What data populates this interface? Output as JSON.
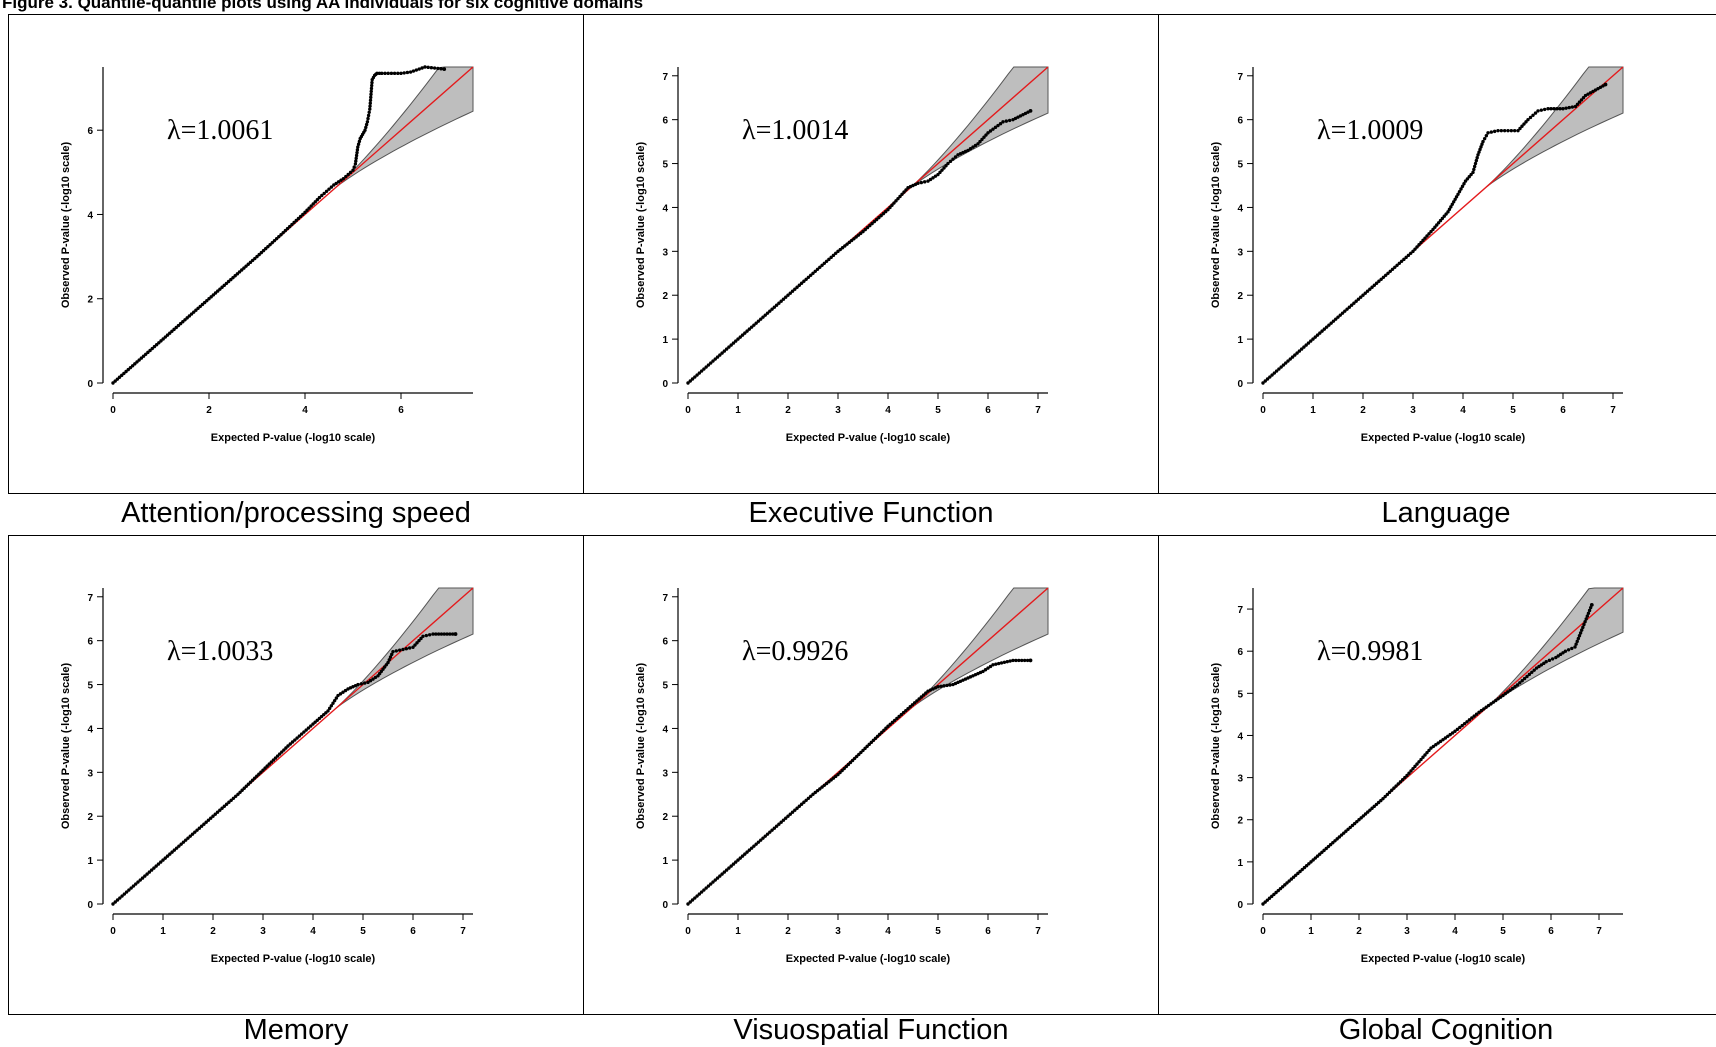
{
  "figure": {
    "caption": "Figure 3. Quantile-quantile plots using AA individuals for six cognitive domains"
  },
  "colors": {
    "expected_line": "#e41a1c",
    "confidence_band": "#bebebe",
    "points": "#000000",
    "frame": "#000000"
  },
  "chart_data": [
    {
      "type": "scatter",
      "title": "Attention/processing speed",
      "annotation": "λ=1.0061",
      "xlabel": "Expected P-value (-log10 scale)",
      "ylabel": "Observed P-value (-log10 scale)",
      "xlim": [
        0,
        7.5
      ],
      "ylim": [
        0,
        7.5
      ],
      "xticks": [
        0,
        2,
        4,
        6
      ],
      "yticks": [
        0,
        2,
        4,
        6
      ],
      "reference_line": "y=x",
      "confidence_band": true,
      "grid": false,
      "points": [
        [
          0.5,
          0.5
        ],
        [
          1,
          1
        ],
        [
          1.5,
          1.5
        ],
        [
          2,
          2
        ],
        [
          2.5,
          2.5
        ],
        [
          3,
          3
        ],
        [
          3.5,
          3.52
        ],
        [
          4,
          4.05
        ],
        [
          4.3,
          4.4
        ],
        [
          4.6,
          4.7
        ],
        [
          4.8,
          4.85
        ],
        [
          4.9,
          4.95
        ],
        [
          5,
          5.05
        ],
        [
          5.05,
          5.2
        ],
        [
          5.1,
          5.6
        ],
        [
          5.15,
          5.8
        ],
        [
          5.2,
          5.9
        ],
        [
          5.25,
          6.0
        ],
        [
          5.3,
          6.2
        ],
        [
          5.35,
          6.5
        ],
        [
          5.4,
          7.2
        ],
        [
          5.45,
          7.3
        ],
        [
          5.5,
          7.35
        ],
        [
          5.6,
          7.35
        ],
        [
          5.8,
          7.35
        ],
        [
          6.0,
          7.35
        ],
        [
          6.2,
          7.38
        ],
        [
          6.5,
          7.5
        ],
        [
          6.9,
          7.45
        ]
      ]
    },
    {
      "type": "scatter",
      "title": "Executive Function",
      "annotation": "λ=1.0014",
      "xlabel": "Expected P-value (-log10 scale)",
      "ylabel": "Observed P-value (-log10 scale)",
      "xlim": [
        0,
        7.2
      ],
      "ylim": [
        0,
        7.2
      ],
      "xticks": [
        0,
        1,
        2,
        3,
        4,
        5,
        6,
        7
      ],
      "yticks": [
        0,
        1,
        2,
        3,
        4,
        5,
        6,
        7
      ],
      "reference_line": "y=x",
      "confidence_band": true,
      "grid": false,
      "points": [
        [
          0.5,
          0.5
        ],
        [
          1,
          1
        ],
        [
          1.5,
          1.5
        ],
        [
          2,
          2
        ],
        [
          2.5,
          2.5
        ],
        [
          3,
          3
        ],
        [
          3.5,
          3.45
        ],
        [
          4,
          3.95
        ],
        [
          4.2,
          4.2
        ],
        [
          4.4,
          4.45
        ],
        [
          4.6,
          4.55
        ],
        [
          4.8,
          4.6
        ],
        [
          5,
          4.75
        ],
        [
          5.2,
          5.0
        ],
        [
          5.4,
          5.2
        ],
        [
          5.6,
          5.3
        ],
        [
          5.8,
          5.45
        ],
        [
          6.0,
          5.7
        ],
        [
          6.3,
          5.95
        ],
        [
          6.5,
          6.0
        ],
        [
          6.85,
          6.2
        ]
      ]
    },
    {
      "type": "scatter",
      "title": "Language",
      "annotation": "λ=1.0009",
      "xlabel": "Expected P-value (-log10 scale)",
      "ylabel": "Observed P-value (-log10 scale)",
      "xlim": [
        0,
        7.2
      ],
      "ylim": [
        0,
        7.2
      ],
      "xticks": [
        0,
        1,
        2,
        3,
        4,
        5,
        6,
        7
      ],
      "yticks": [
        0,
        1,
        2,
        3,
        4,
        5,
        6,
        7
      ],
      "reference_line": "y=x",
      "confidence_band": true,
      "grid": false,
      "points": [
        [
          0.5,
          0.5
        ],
        [
          1,
          1
        ],
        [
          1.5,
          1.5
        ],
        [
          2,
          2
        ],
        [
          2.5,
          2.5
        ],
        [
          3,
          3
        ],
        [
          3.4,
          3.5
        ],
        [
          3.7,
          3.9
        ],
        [
          3.9,
          4.3
        ],
        [
          4.05,
          4.6
        ],
        [
          4.2,
          4.8
        ],
        [
          4.3,
          5.2
        ],
        [
          4.4,
          5.5
        ],
        [
          4.5,
          5.7
        ],
        [
          4.7,
          5.75
        ],
        [
          4.9,
          5.75
        ],
        [
          5.1,
          5.75
        ],
        [
          5.3,
          6.0
        ],
        [
          5.5,
          6.2
        ],
        [
          5.7,
          6.25
        ],
        [
          6.0,
          6.25
        ],
        [
          6.25,
          6.3
        ],
        [
          6.45,
          6.55
        ],
        [
          6.85,
          6.8
        ]
      ]
    },
    {
      "type": "scatter",
      "title": "Memory",
      "annotation": "λ=1.0033",
      "xlabel": "Expected P-value (-log10 scale)",
      "ylabel": "Observed P-value (-log10 scale)",
      "xlim": [
        0,
        7.2
      ],
      "ylim": [
        0,
        7.2
      ],
      "xticks": [
        0,
        1,
        2,
        3,
        4,
        5,
        6,
        7
      ],
      "yticks": [
        0,
        1,
        2,
        3,
        4,
        5,
        6,
        7
      ],
      "reference_line": "y=x",
      "confidence_band": true,
      "grid": false,
      "points": [
        [
          0.5,
          0.5
        ],
        [
          1,
          1
        ],
        [
          1.5,
          1.5
        ],
        [
          2,
          2
        ],
        [
          2.5,
          2.5
        ],
        [
          3,
          3.05
        ],
        [
          3.5,
          3.6
        ],
        [
          4,
          4.1
        ],
        [
          4.3,
          4.4
        ],
        [
          4.5,
          4.75
        ],
        [
          4.7,
          4.9
        ],
        [
          4.9,
          5.0
        ],
        [
          5.1,
          5.05
        ],
        [
          5.3,
          5.2
        ],
        [
          5.5,
          5.5
        ],
        [
          5.6,
          5.75
        ],
        [
          5.8,
          5.8
        ],
        [
          6.0,
          5.85
        ],
        [
          6.2,
          6.1
        ],
        [
          6.4,
          6.15
        ],
        [
          6.85,
          6.15
        ]
      ]
    },
    {
      "type": "scatter",
      "title": "Visuospatial Function",
      "annotation": "λ=0.9926",
      "xlabel": "Expected P-value (-log10 scale)",
      "ylabel": "Observed P-value (-log10 scale)",
      "xlim": [
        0,
        7.2
      ],
      "ylim": [
        0,
        7.2
      ],
      "xticks": [
        0,
        1,
        2,
        3,
        4,
        5,
        6,
        7
      ],
      "yticks": [
        0,
        1,
        2,
        3,
        4,
        5,
        6,
        7
      ],
      "reference_line": "y=x",
      "confidence_band": true,
      "grid": false,
      "points": [
        [
          0.5,
          0.5
        ],
        [
          1,
          1
        ],
        [
          1.5,
          1.5
        ],
        [
          2,
          2
        ],
        [
          2.5,
          2.5
        ],
        [
          3,
          2.95
        ],
        [
          3.5,
          3.5
        ],
        [
          4,
          4.05
        ],
        [
          4.4,
          4.45
        ],
        [
          4.8,
          4.85
        ],
        [
          5,
          4.95
        ],
        [
          5.3,
          5.0
        ],
        [
          5.5,
          5.1
        ],
        [
          5.7,
          5.2
        ],
        [
          5.9,
          5.3
        ],
        [
          6.1,
          5.45
        ],
        [
          6.5,
          5.55
        ],
        [
          6.85,
          5.55
        ]
      ]
    },
    {
      "type": "scatter",
      "title": "Global Cognition",
      "annotation": "λ=0.9981",
      "xlabel": "Expected P-value (-log10 scale)",
      "ylabel": "Observed P-value (-log10 scale)",
      "xlim": [
        0,
        7.5
      ],
      "ylim": [
        0,
        7.5
      ],
      "xticks": [
        0,
        1,
        2,
        3,
        4,
        5,
        6,
        7
      ],
      "yticks": [
        0,
        1,
        2,
        3,
        4,
        5,
        6,
        7
      ],
      "reference_line": "y=x",
      "confidence_band": true,
      "grid": false,
      "points": [
        [
          0.5,
          0.5
        ],
        [
          1,
          1
        ],
        [
          1.5,
          1.5
        ],
        [
          2,
          2
        ],
        [
          2.5,
          2.5
        ],
        [
          3,
          3.05
        ],
        [
          3.5,
          3.7
        ],
        [
          4,
          4.1
        ],
        [
          4.5,
          4.55
        ],
        [
          5,
          4.95
        ],
        [
          5.3,
          5.2
        ],
        [
          5.5,
          5.4
        ],
        [
          5.7,
          5.6
        ],
        [
          5.9,
          5.75
        ],
        [
          6.1,
          5.85
        ],
        [
          6.3,
          6.0
        ],
        [
          6.5,
          6.1
        ],
        [
          6.85,
          7.1
        ]
      ]
    }
  ]
}
